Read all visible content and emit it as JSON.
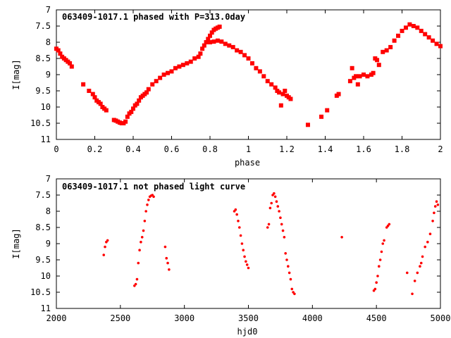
{
  "chart_data": [
    {
      "type": "scatter",
      "title": "063409-1017.1 phased with P=313.0day",
      "xlabel": "phase",
      "ylabel": "I[mag]",
      "xlim": [
        0,
        2
      ],
      "ylim": [
        11,
        7
      ],
      "y_inverted": true,
      "x_ticks": [
        "0",
        "0.2",
        "0.4",
        "0.6",
        "0.8",
        "1",
        "1.2",
        "1.4",
        "1.6",
        "1.8",
        "2"
      ],
      "y_ticks": [
        "7",
        "7.5",
        "8",
        "8.5",
        "9",
        "9.5",
        "10",
        "10.5",
        "11"
      ],
      "marker": "square",
      "color": "#ff0000",
      "grid": false,
      "series": [
        {
          "x": [
            0.0,
            0.01,
            0.02,
            0.03,
            0.04,
            0.05,
            0.06,
            0.07,
            0.08,
            0.14,
            0.17,
            0.19,
            0.2,
            0.21,
            0.22,
            0.23,
            0.24,
            0.25,
            0.26,
            0.3,
            0.31,
            0.32,
            0.33,
            0.34,
            0.35,
            0.36,
            0.37,
            0.38,
            0.39,
            0.4,
            0.41,
            0.42,
            0.43,
            0.44,
            0.45,
            0.46,
            0.47,
            0.48,
            0.5,
            0.52,
            0.54,
            0.56,
            0.58,
            0.6,
            0.62,
            0.64,
            0.66,
            0.68,
            0.7,
            0.72,
            0.74,
            0.75,
            0.76,
            0.77,
            0.78,
            0.79,
            0.8,
            0.81,
            0.82,
            0.83,
            0.84,
            0.85,
            0.8,
            0.82,
            0.84,
            0.86,
            0.88,
            0.9,
            0.92,
            0.94,
            0.96,
            0.98,
            1.0,
            1.02,
            1.04,
            1.06,
            1.08,
            1.1,
            1.12,
            1.14,
            1.16,
            1.18,
            1.2,
            1.22,
            1.15,
            1.17,
            1.19,
            1.21,
            1.31,
            1.38,
            1.41,
            1.46,
            1.47,
            1.53,
            1.54,
            1.55,
            1.56,
            1.57,
            1.58,
            1.6,
            1.62,
            1.64,
            1.65,
            1.66,
            1.67,
            1.68,
            1.7,
            1.72,
            1.74,
            1.76,
            1.78,
            1.8,
            1.82,
            1.84,
            1.86,
            1.88,
            1.9,
            1.92,
            1.94,
            1.96,
            1.98,
            2.0
          ],
          "y": [
            8.2,
            8.25,
            8.35,
            8.45,
            8.5,
            8.55,
            8.6,
            8.65,
            8.75,
            9.3,
            9.5,
            9.6,
            9.7,
            9.8,
            9.85,
            9.9,
            10.0,
            10.05,
            10.1,
            10.4,
            10.42,
            10.45,
            10.48,
            10.5,
            10.5,
            10.45,
            10.3,
            10.2,
            10.15,
            10.05,
            9.95,
            9.9,
            9.8,
            9.7,
            9.65,
            9.6,
            9.55,
            9.45,
            9.3,
            9.2,
            9.1,
            9.0,
            8.95,
            8.9,
            8.8,
            8.75,
            8.7,
            8.65,
            8.6,
            8.5,
            8.45,
            8.35,
            8.2,
            8.1,
            8.0,
            7.9,
            7.8,
            7.7,
            7.62,
            7.58,
            7.55,
            7.52,
            8.0,
            7.98,
            7.95,
            7.98,
            8.05,
            8.1,
            8.15,
            8.25,
            8.3,
            8.4,
            8.5,
            8.65,
            8.8,
            8.9,
            9.05,
            9.2,
            9.3,
            9.4,
            9.55,
            9.6,
            9.65,
            9.75,
            9.5,
            9.95,
            9.5,
            9.7,
            10.55,
            10.3,
            10.1,
            9.65,
            9.6,
            9.2,
            8.8,
            9.1,
            9.05,
            9.3,
            9.05,
            9.0,
            9.05,
            9.0,
            8.95,
            8.5,
            8.55,
            8.7,
            8.3,
            8.25,
            8.15,
            7.95,
            7.8,
            7.65,
            7.55,
            7.45,
            7.5,
            7.55,
            7.65,
            7.75,
            7.85,
            7.95,
            8.05,
            8.12
          ]
        }
      ]
    },
    {
      "type": "scatter",
      "title": "063409-1017.1 not phased light curve",
      "xlabel": "hjd0",
      "ylabel": "I[mag]",
      "xlim": [
        2000,
        5000
      ],
      "ylim": [
        11,
        7
      ],
      "y_inverted": true,
      "x_ticks": [
        "2000",
        "2500",
        "3000",
        "3500",
        "4000",
        "4500",
        "5000"
      ],
      "y_ticks": [
        "7",
        "7.5",
        "8",
        "8.5",
        "9",
        "9.5",
        "10",
        "10.5",
        "11"
      ],
      "marker": "dot",
      "color": "#ff0000",
      "grid": false,
      "series": [
        {
          "x": [
            2370,
            2380,
            2390,
            2400,
            2610,
            2620,
            2630,
            2640,
            2650,
            2660,
            2670,
            2680,
            2690,
            2700,
            2710,
            2720,
            2730,
            2740,
            2750,
            2760,
            2850,
            2860,
            2870,
            2880,
            3390,
            3400,
            3410,
            3420,
            3430,
            3440,
            3450,
            3460,
            3470,
            3480,
            3490,
            3500,
            3650,
            3660,
            3670,
            3680,
            3690,
            3700,
            3710,
            3720,
            3730,
            3740,
            3750,
            3760,
            3770,
            3780,
            3790,
            3800,
            3810,
            3820,
            3830,
            3840,
            3850,
            3860,
            4230,
            4480,
            4490,
            4500,
            4510,
            4520,
            4530,
            4540,
            4550,
            4560,
            4580,
            4590,
            4600,
            4740,
            4780,
            4800,
            4820,
            4840,
            4850,
            4860,
            4880,
            4900,
            4920,
            4940,
            4950,
            4960,
            4970,
            4980
          ],
          "y": [
            9.35,
            9.1,
            8.95,
            8.9,
            10.3,
            10.25,
            10.1,
            9.6,
            9.2,
            8.95,
            8.8,
            8.6,
            8.3,
            8.0,
            7.8,
            7.65,
            7.55,
            7.52,
            7.5,
            7.55,
            9.1,
            9.45,
            9.6,
            9.8,
            8.0,
            7.95,
            8.1,
            8.3,
            8.5,
            8.75,
            9.0,
            9.2,
            9.4,
            9.55,
            9.65,
            9.75,
            8.5,
            8.4,
            7.9,
            7.75,
            7.5,
            7.45,
            7.55,
            7.7,
            7.85,
            8.0,
            8.2,
            8.4,
            8.6,
            8.8,
            9.3,
            9.5,
            9.7,
            9.9,
            10.1,
            10.4,
            10.5,
            10.55,
            8.8,
            10.45,
            10.4,
            10.2,
            10.0,
            9.7,
            9.5,
            9.25,
            9.0,
            8.9,
            8.5,
            8.45,
            8.4,
            9.9,
            10.55,
            10.15,
            9.9,
            9.7,
            9.6,
            9.4,
            9.1,
            8.95,
            8.7,
            8.3,
            8.05,
            7.85,
            7.7,
            7.8
          ]
        }
      ]
    }
  ]
}
